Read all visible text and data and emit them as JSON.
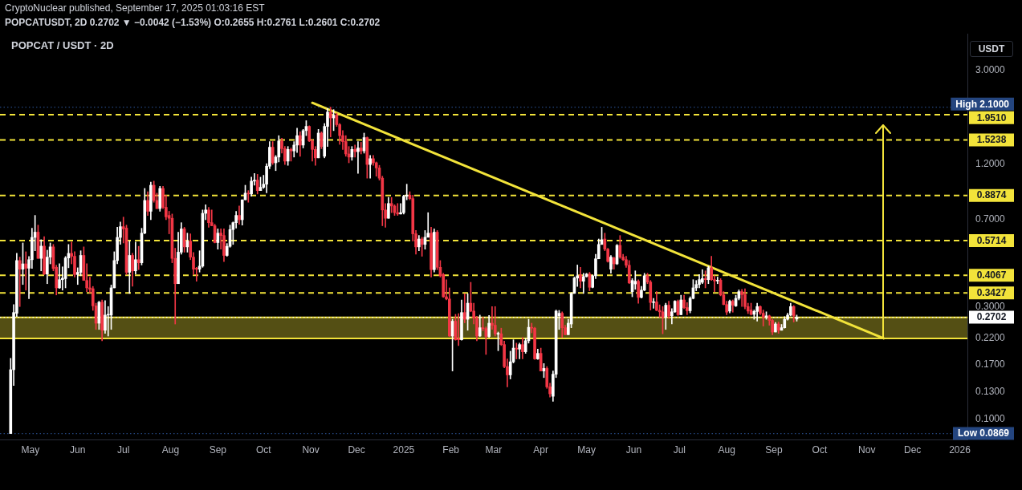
{
  "chart_data": {
    "type": "candlestick",
    "title": "POPCAT / USDT · 2D",
    "subtitle": "POPCATUSDT, 2D 0.2702 ▼ −0.0042 (−1.53%) O:0.2655 H:0.2761 L:0.2601 C:0.2702",
    "annotations": [
      "CryptoNuclear published, September 17, 2025 01:03:16 EST"
    ],
    "ylabel": "USDT",
    "x": [
      "2024-04-18",
      "2024-04-20",
      "2024-04-22",
      "2024-04-24",
      "2024-04-26",
      "2024-04-28",
      "2024-04-30",
      "2024-05-02",
      "2024-05-04",
      "2024-05-06",
      "2024-05-08",
      "2024-05-10",
      "2024-05-12",
      "2024-05-14",
      "2024-05-16",
      "2024-05-18",
      "2024-05-20",
      "2024-05-22",
      "2024-05-24",
      "2024-05-26",
      "2024-05-28",
      "2024-05-30",
      "2024-06-01",
      "2024-06-03",
      "2024-06-05",
      "2024-06-07",
      "2024-06-09",
      "2024-06-11",
      "2024-06-13",
      "2024-06-15",
      "2024-06-17",
      "2024-06-19",
      "2024-06-21",
      "2024-06-23",
      "2024-06-25",
      "2024-06-27",
      "2024-06-29",
      "2024-07-01",
      "2024-07-03",
      "2024-07-05",
      "2024-07-07",
      "2024-07-09",
      "2024-07-11",
      "2024-07-13",
      "2024-07-15",
      "2024-07-17",
      "2024-07-19",
      "2024-07-21",
      "2024-07-23",
      "2024-07-25",
      "2024-07-27",
      "2024-07-29",
      "2024-07-31",
      "2024-08-02",
      "2024-08-04",
      "2024-08-06",
      "2024-08-08",
      "2024-08-10",
      "2024-08-12",
      "2024-08-14",
      "2024-08-16",
      "2024-08-18",
      "2024-08-20",
      "2024-08-22",
      "2024-08-24",
      "2024-08-26",
      "2024-08-28",
      "2024-08-30",
      "2024-09-01",
      "2024-09-03",
      "2024-09-05",
      "2024-09-07",
      "2024-09-09",
      "2024-09-11",
      "2024-09-13",
      "2024-09-15",
      "2024-09-17",
      "2024-09-19",
      "2024-09-21",
      "2024-09-23",
      "2024-09-25",
      "2024-09-27",
      "2024-09-29",
      "2024-10-01",
      "2024-10-03",
      "2024-10-05",
      "2024-10-07",
      "2024-10-09",
      "2024-10-11",
      "2024-10-13",
      "2024-10-15",
      "2024-10-17",
      "2024-10-19",
      "2024-10-21",
      "2024-10-23",
      "2024-10-25",
      "2024-10-27",
      "2024-10-29",
      "2024-10-31",
      "2024-11-02",
      "2024-11-04",
      "2024-11-06",
      "2024-11-08",
      "2024-11-10",
      "2024-11-12",
      "2024-11-14",
      "2024-11-16",
      "2024-11-18",
      "2024-11-20",
      "2024-11-22",
      "2024-11-24",
      "2024-11-26",
      "2024-11-28",
      "2024-11-30",
      "2024-12-02",
      "2024-12-04",
      "2024-12-06",
      "2024-12-08",
      "2024-12-10",
      "2024-12-12",
      "2024-12-14",
      "2024-12-16",
      "2024-12-18",
      "2024-12-20",
      "2024-12-22",
      "2024-12-24",
      "2024-12-26",
      "2024-12-28",
      "2024-12-30",
      "2025-01-01",
      "2025-01-03",
      "2025-01-05",
      "2025-01-07",
      "2025-01-09",
      "2025-01-11",
      "2025-01-13",
      "2025-01-15",
      "2025-01-17",
      "2025-01-19",
      "2025-01-21",
      "2025-01-23",
      "2025-01-25",
      "2025-01-27",
      "2025-01-29",
      "2025-01-31",
      "2025-02-02",
      "2025-02-04",
      "2025-02-06",
      "2025-02-08",
      "2025-02-10",
      "2025-02-12",
      "2025-02-14",
      "2025-02-16",
      "2025-02-18",
      "2025-02-20",
      "2025-02-22",
      "2025-02-24",
      "2025-02-26",
      "2025-02-28",
      "2025-03-02",
      "2025-03-04",
      "2025-03-06",
      "2025-03-08",
      "2025-03-10",
      "2025-03-12",
      "2025-03-14",
      "2025-03-16",
      "2025-03-18",
      "2025-03-20",
      "2025-03-22",
      "2025-03-24",
      "2025-03-26",
      "2025-03-28",
      "2025-03-30",
      "2025-04-01",
      "2025-04-03",
      "2025-04-05",
      "2025-04-07",
      "2025-04-09",
      "2025-04-11",
      "2025-04-13",
      "2025-04-15",
      "2025-04-17",
      "2025-04-19",
      "2025-04-21",
      "2025-04-23",
      "2025-04-25",
      "2025-04-27",
      "2025-04-29",
      "2025-05-01",
      "2025-05-03",
      "2025-05-05",
      "2025-05-07",
      "2025-05-09",
      "2025-05-11",
      "2025-05-13",
      "2025-05-15",
      "2025-05-17",
      "2025-05-19",
      "2025-05-21",
      "2025-05-23",
      "2025-05-25",
      "2025-05-27",
      "2025-05-29",
      "2025-05-31",
      "2025-06-02",
      "2025-06-04",
      "2025-06-06",
      "2025-06-08",
      "2025-06-10",
      "2025-06-12",
      "2025-06-14",
      "2025-06-16",
      "2025-06-18",
      "2025-06-20",
      "2025-06-22",
      "2025-06-24",
      "2025-06-26",
      "2025-06-28",
      "2025-06-30",
      "2025-07-02",
      "2025-07-04",
      "2025-07-06",
      "2025-07-08",
      "2025-07-10",
      "2025-07-12",
      "2025-07-14",
      "2025-07-16",
      "2025-07-18",
      "2025-07-20",
      "2025-07-22",
      "2025-07-24",
      "2025-07-26",
      "2025-07-28",
      "2025-07-30",
      "2025-08-01",
      "2025-08-03",
      "2025-08-05",
      "2025-08-07",
      "2025-08-09",
      "2025-08-11",
      "2025-08-13",
      "2025-08-15",
      "2025-08-17",
      "2025-08-19",
      "2025-08-21",
      "2025-08-23",
      "2025-08-25",
      "2025-08-27",
      "2025-08-29",
      "2025-08-31",
      "2025-09-02",
      "2025-09-04",
      "2025-09-06",
      "2025-09-08",
      "2025-09-10",
      "2025-09-12",
      "2025-09-14",
      "2025-09-16"
    ],
    "ohlc": [
      [
        0.0869,
        0.181,
        0.0869,
        0.162
      ],
      [
        0.162,
        0.306,
        0.139,
        0.283
      ],
      [
        0.281,
        0.504,
        0.272,
        0.47
      ],
      [
        0.47,
        0.486,
        0.3,
        0.432
      ],
      [
        0.432,
        0.558,
        0.372,
        0.455
      ],
      [
        0.455,
        0.512,
        0.352,
        0.436
      ],
      [
        0.436,
        0.489,
        0.324,
        0.474
      ],
      [
        0.474,
        0.644,
        0.435,
        0.589
      ],
      [
        0.589,
        0.73,
        0.517,
        0.62
      ],
      [
        0.62,
        0.664,
        0.48,
        0.48
      ],
      [
        0.48,
        0.576,
        0.425,
        0.541
      ],
      [
        0.541,
        0.594,
        0.41,
        0.412
      ],
      [
        0.412,
        0.52,
        0.375,
        0.486
      ],
      [
        0.486,
        0.558,
        0.455,
        0.537
      ],
      [
        0.537,
        0.55,
        0.425,
        0.435
      ],
      [
        0.44,
        0.449,
        0.336,
        0.36
      ],
      [
        0.36,
        0.456,
        0.358,
        0.39
      ],
      [
        0.39,
        0.442,
        0.352,
        0.396
      ],
      [
        0.394,
        0.489,
        0.36,
        0.482
      ],
      [
        0.482,
        0.55,
        0.438,
        0.504
      ],
      [
        0.504,
        0.563,
        0.455,
        0.49
      ],
      [
        0.49,
        0.512,
        0.4,
        0.41
      ],
      [
        0.41,
        0.438,
        0.372,
        0.419
      ],
      [
        0.419,
        0.517,
        0.405,
        0.494
      ],
      [
        0.494,
        0.537,
        0.387,
        0.387
      ],
      [
        0.387,
        0.456,
        0.347,
        0.36
      ],
      [
        0.36,
        0.4,
        0.343,
        0.355
      ],
      [
        0.357,
        0.365,
        0.289,
        0.302
      ],
      [
        0.302,
        0.31,
        0.24,
        0.255
      ],
      [
        0.255,
        0.316,
        0.24,
        0.313
      ],
      [
        0.313,
        0.32,
        0.215,
        0.238
      ],
      [
        0.238,
        0.318,
        0.231,
        0.276
      ],
      [
        0.276,
        0.3,
        0.225,
        0.277
      ],
      [
        0.276,
        0.37,
        0.24,
        0.36
      ],
      [
        0.36,
        0.512,
        0.36,
        0.47
      ],
      [
        0.47,
        0.65,
        0.455,
        0.589
      ],
      [
        0.589,
        0.685,
        0.55,
        0.654
      ],
      [
        0.654,
        0.718,
        0.558,
        0.64
      ],
      [
        0.645,
        0.664,
        0.41,
        0.419
      ],
      [
        0.419,
        0.568,
        0.341,
        0.494
      ],
      [
        0.494,
        0.504,
        0.366,
        0.425
      ],
      [
        0.425,
        0.563,
        0.412,
        0.474
      ],
      [
        0.474,
        0.54,
        0.43,
        0.46
      ],
      [
        0.46,
        0.644,
        0.45,
        0.614
      ],
      [
        0.614,
        0.95,
        0.61,
        0.845
      ],
      [
        0.845,
        0.92,
        0.73,
        0.76
      ],
      [
        0.76,
        1.01,
        0.7,
        0.98
      ],
      [
        0.98,
        1.02,
        0.83,
        0.845
      ],
      [
        0.845,
        0.907,
        0.78,
        0.78
      ],
      [
        0.78,
        0.97,
        0.76,
        0.95
      ],
      [
        0.95,
        0.97,
        0.78,
        0.79
      ],
      [
        0.79,
        0.89,
        0.7,
        0.72
      ],
      [
        0.73,
        0.76,
        0.61,
        0.71
      ],
      [
        0.71,
        0.74,
        0.46,
        0.48
      ],
      [
        0.48,
        0.53,
        0.253,
        0.375
      ],
      [
        0.375,
        0.62,
        0.375,
        0.51
      ],
      [
        0.51,
        0.68,
        0.5,
        0.64
      ],
      [
        0.64,
        0.65,
        0.51,
        0.537
      ],
      [
        0.537,
        0.614,
        0.51,
        0.568
      ],
      [
        0.568,
        0.61,
        0.474,
        0.486
      ],
      [
        0.486,
        0.508,
        0.41,
        0.432
      ],
      [
        0.435,
        0.44,
        0.384,
        0.432
      ],
      [
        0.432,
        0.517,
        0.42,
        0.445
      ],
      [
        0.445,
        0.77,
        0.44,
        0.745
      ],
      [
        0.745,
        0.81,
        0.7,
        0.77
      ],
      [
        0.77,
        0.79,
        0.65,
        0.68
      ],
      [
        0.68,
        0.77,
        0.66,
        0.66
      ],
      [
        0.66,
        0.67,
        0.558,
        0.56
      ],
      [
        0.56,
        0.64,
        0.525,
        0.614
      ],
      [
        0.614,
        0.64,
        0.525,
        0.6
      ],
      [
        0.6,
        0.64,
        0.465,
        0.494
      ],
      [
        0.494,
        0.555,
        0.49,
        0.54
      ],
      [
        0.54,
        0.664,
        0.535,
        0.636
      ],
      [
        0.636,
        0.685,
        0.55,
        0.68
      ],
      [
        0.68,
        0.76,
        0.645,
        0.73
      ],
      [
        0.73,
        0.8,
        0.67,
        0.7
      ],
      [
        0.7,
        0.85,
        0.664,
        0.85
      ],
      [
        0.85,
        0.98,
        0.85,
        0.907
      ],
      [
        0.907,
        0.93,
        0.83,
        0.9
      ],
      [
        0.9,
        1.06,
        0.88,
        1.02
      ],
      [
        1.02,
        1.1,
        0.98,
        1.03
      ],
      [
        1.03,
        1.09,
        0.9,
        0.93
      ],
      [
        0.93,
        1.06,
        0.93,
        0.96
      ],
      [
        0.96,
        1.08,
        0.95,
        0.99
      ],
      [
        0.99,
        1.21,
        0.91,
        1.18
      ],
      [
        1.18,
        1.5,
        1.15,
        1.42
      ],
      [
        1.42,
        1.5,
        1.2,
        1.22
      ],
      [
        1.22,
        1.31,
        1.13,
        1.29
      ],
      [
        1.29,
        1.59,
        1.23,
        1.51
      ],
      [
        1.51,
        1.55,
        1.34,
        1.4
      ],
      [
        1.4,
        1.43,
        1.2,
        1.24
      ],
      [
        1.24,
        1.43,
        1.19,
        1.39
      ],
      [
        1.39,
        1.41,
        1.24,
        1.37
      ],
      [
        1.37,
        1.5,
        1.29,
        1.45
      ],
      [
        1.45,
        1.71,
        1.35,
        1.59
      ],
      [
        1.59,
        1.65,
        1.3,
        1.45
      ],
      [
        1.45,
        1.69,
        1.41,
        1.67
      ],
      [
        1.67,
        1.84,
        1.59,
        1.74
      ],
      [
        1.74,
        1.75,
        1.5,
        1.51
      ],
      [
        1.51,
        1.53,
        1.24,
        1.39
      ],
      [
        1.39,
        1.43,
        1.19,
        1.28
      ],
      [
        1.28,
        1.69,
        1.28,
        1.63
      ],
      [
        1.63,
        1.65,
        1.4,
        1.43
      ],
      [
        1.3,
        1.79,
        1.28,
        1.74
      ],
      [
        1.74,
        2.07,
        1.43,
        2.0
      ],
      [
        2.0,
        2.1,
        1.57,
        1.89
      ],
      [
        1.89,
        2.05,
        1.67,
        1.94
      ],
      [
        1.94,
        1.98,
        1.74,
        1.77
      ],
      [
        1.77,
        1.79,
        1.46,
        1.59
      ],
      [
        1.59,
        1.67,
        1.39,
        1.5
      ],
      [
        1.5,
        1.59,
        1.3,
        1.33
      ],
      [
        1.33,
        1.43,
        1.22,
        1.29
      ],
      [
        1.29,
        1.43,
        1.25,
        1.39
      ],
      [
        1.39,
        1.45,
        1.29,
        1.36
      ],
      [
        1.36,
        1.5,
        1.1,
        1.41
      ],
      [
        1.41,
        1.49,
        1.33,
        1.37
      ],
      [
        1.37,
        1.63,
        1.34,
        1.56
      ],
      [
        1.56,
        1.57,
        1.05,
        1.2
      ],
      [
        1.2,
        1.31,
        1.05,
        1.27
      ],
      [
        1.27,
        1.31,
        1.19,
        1.22
      ],
      [
        1.22,
        1.23,
        1.07,
        1.16
      ],
      [
        1.16,
        1.19,
        1.03,
        1.05
      ],
      [
        1.05,
        1.07,
        0.66,
        0.77
      ],
      [
        0.77,
        0.82,
        0.65,
        0.71
      ],
      [
        0.71,
        0.87,
        0.71,
        0.82
      ],
      [
        0.82,
        0.87,
        0.75,
        0.8
      ],
      [
        0.8,
        0.81,
        0.73,
        0.75
      ],
      [
        0.75,
        0.82,
        0.73,
        0.74
      ],
      [
        0.74,
        0.82,
        0.74,
        0.75
      ],
      [
        0.75,
        0.89,
        0.74,
        0.88
      ],
      [
        0.88,
        0.99,
        0.85,
        0.89
      ],
      [
        0.89,
        0.92,
        0.85,
        0.86
      ],
      [
        0.86,
        0.89,
        0.568,
        0.61
      ],
      [
        0.61,
        0.63,
        0.5,
        0.537
      ],
      [
        0.537,
        0.6,
        0.517,
        0.58
      ],
      [
        0.58,
        0.59,
        0.49,
        0.55
      ],
      [
        0.55,
        0.63,
        0.525,
        0.59
      ],
      [
        0.59,
        0.75,
        0.59,
        0.614
      ],
      [
        0.614,
        0.65,
        0.4,
        0.43
      ],
      [
        0.43,
        0.64,
        0.42,
        0.62
      ],
      [
        0.62,
        0.63,
        0.43,
        0.44
      ],
      [
        0.44,
        0.47,
        0.4,
        0.405
      ],
      [
        0.41,
        0.415,
        0.328,
        0.33
      ],
      [
        0.33,
        0.39,
        0.32,
        0.323
      ],
      [
        0.323,
        0.36,
        0.224,
        0.225
      ],
      [
        0.225,
        0.265,
        0.16,
        0.26
      ],
      [
        0.26,
        0.278,
        0.216,
        0.217
      ],
      [
        0.219,
        0.28,
        0.205,
        0.217
      ],
      [
        0.217,
        0.32,
        0.216,
        0.283
      ],
      [
        0.283,
        0.34,
        0.256,
        0.265
      ],
      [
        0.265,
        0.34,
        0.238,
        0.31
      ],
      [
        0.31,
        0.38,
        0.285,
        0.287
      ],
      [
        0.287,
        0.31,
        0.253,
        0.268
      ],
      [
        0.268,
        0.273,
        0.215,
        0.225
      ],
      [
        0.225,
        0.276,
        0.224,
        0.244
      ],
      [
        0.244,
        0.27,
        0.237,
        0.242
      ],
      [
        0.242,
        0.246,
        0.188,
        0.224
      ],
      [
        0.224,
        0.275,
        0.222,
        0.255
      ],
      [
        0.255,
        0.3,
        0.24,
        0.25
      ],
      [
        0.25,
        0.3,
        0.225,
        0.23
      ],
      [
        0.229,
        0.234,
        0.195,
        0.231
      ],
      [
        0.23,
        0.243,
        0.205,
        0.207
      ],
      [
        0.207,
        0.214,
        0.165,
        0.167
      ],
      [
        0.167,
        0.18,
        0.137,
        0.154
      ],
      [
        0.154,
        0.194,
        0.148,
        0.175
      ],
      [
        0.175,
        0.217,
        0.173,
        0.2
      ],
      [
        0.2,
        0.21,
        0.18,
        0.198
      ],
      [
        0.198,
        0.21,
        0.18,
        0.207
      ],
      [
        0.207,
        0.222,
        0.18,
        0.193
      ],
      [
        0.193,
        0.22,
        0.19,
        0.215
      ],
      [
        0.215,
        0.265,
        0.21,
        0.245
      ],
      [
        0.245,
        0.255,
        0.232,
        0.243
      ],
      [
        0.243,
        0.245,
        0.179,
        0.18
      ],
      [
        0.18,
        0.198,
        0.179,
        0.19
      ],
      [
        0.19,
        0.2,
        0.16,
        0.16
      ],
      [
        0.16,
        0.172,
        0.15,
        0.164
      ],
      [
        0.164,
        0.167,
        0.135,
        0.137
      ],
      [
        0.137,
        0.142,
        0.124,
        0.128
      ],
      [
        0.125,
        0.16,
        0.119,
        0.155
      ],
      [
        0.155,
        0.29,
        0.15,
        0.287
      ],
      [
        0.274,
        0.289,
        0.24,
        0.281
      ],
      [
        0.281,
        0.285,
        0.222,
        0.244
      ],
      [
        0.244,
        0.25,
        0.228,
        0.228
      ],
      [
        0.228,
        0.265,
        0.228,
        0.255
      ],
      [
        0.253,
        0.344,
        0.244,
        0.341
      ],
      [
        0.341,
        0.4,
        0.341,
        0.396
      ],
      [
        0.396,
        0.45,
        0.365,
        0.405
      ],
      [
        0.409,
        0.44,
        0.36,
        0.384
      ],
      [
        0.384,
        0.415,
        0.341,
        0.402
      ],
      [
        0.402,
        0.415,
        0.4,
        0.412
      ],
      [
        0.412,
        0.419,
        0.35,
        0.362
      ],
      [
        0.362,
        0.408,
        0.36,
        0.405
      ],
      [
        0.405,
        0.5,
        0.394,
        0.478
      ],
      [
        0.478,
        0.58,
        0.478,
        0.55
      ],
      [
        0.55,
        0.65,
        0.55,
        0.576
      ],
      [
        0.58,
        0.614,
        0.517,
        0.525
      ],
      [
        0.525,
        0.53,
        0.463,
        0.466
      ],
      [
        0.432,
        0.494,
        0.415,
        0.486
      ],
      [
        0.482,
        0.486,
        0.432,
        0.455
      ],
      [
        0.455,
        0.55,
        0.452,
        0.545
      ],
      [
        0.545,
        0.6,
        0.48,
        0.486
      ],
      [
        0.486,
        0.5,
        0.47,
        0.474
      ],
      [
        0.474,
        0.49,
        0.44,
        0.449
      ],
      [
        0.449,
        0.47,
        0.375,
        0.378
      ],
      [
        0.347,
        0.394,
        0.33,
        0.387
      ],
      [
        0.374,
        0.425,
        0.355,
        0.384
      ],
      [
        0.384,
        0.39,
        0.31,
        0.328
      ],
      [
        0.328,
        0.365,
        0.326,
        0.352
      ],
      [
        0.352,
        0.415,
        0.35,
        0.405
      ],
      [
        0.405,
        0.415,
        0.375,
        0.381
      ],
      [
        0.381,
        0.387,
        0.29,
        0.312
      ],
      [
        0.312,
        0.325,
        0.295,
        0.314
      ],
      [
        0.314,
        0.347,
        0.288,
        0.289
      ],
      [
        0.289,
        0.305,
        0.27,
        0.285
      ],
      [
        0.285,
        0.3,
        0.23,
        0.27
      ],
      [
        0.27,
        0.31,
        0.24,
        0.304
      ],
      [
        0.304,
        0.316,
        0.267,
        0.274
      ],
      [
        0.274,
        0.294,
        0.253,
        0.285
      ],
      [
        0.285,
        0.318,
        0.283,
        0.316
      ],
      [
        0.316,
        0.32,
        0.275,
        0.277
      ],
      [
        0.277,
        0.335,
        0.277,
        0.32
      ],
      [
        0.32,
        0.335,
        0.294,
        0.297
      ],
      [
        0.297,
        0.312,
        0.277,
        0.288
      ],
      [
        0.288,
        0.33,
        0.282,
        0.325
      ],
      [
        0.325,
        0.39,
        0.323,
        0.36
      ],
      [
        0.36,
        0.387,
        0.35,
        0.372
      ],
      [
        0.372,
        0.41,
        0.36,
        0.39
      ],
      [
        0.38,
        0.43,
        0.375,
        0.394
      ],
      [
        0.394,
        0.425,
        0.36,
        0.39
      ],
      [
        0.39,
        0.445,
        0.375,
        0.438
      ],
      [
        0.438,
        0.49,
        0.387,
        0.39
      ],
      [
        0.39,
        0.405,
        0.347,
        0.385
      ],
      [
        0.385,
        0.4,
        0.375,
        0.388
      ],
      [
        0.388,
        0.394,
        0.333,
        0.336
      ],
      [
        0.336,
        0.347,
        0.305,
        0.306
      ],
      [
        0.306,
        0.316,
        0.277,
        0.284
      ],
      [
        0.287,
        0.32,
        0.282,
        0.316
      ],
      [
        0.316,
        0.32,
        0.284,
        0.304
      ],
      [
        0.302,
        0.335,
        0.3,
        0.325
      ],
      [
        0.325,
        0.353,
        0.32,
        0.347
      ],
      [
        0.347,
        0.355,
        0.3,
        0.337
      ],
      [
        0.337,
        0.357,
        0.293,
        0.3
      ],
      [
        0.3,
        0.31,
        0.28,
        0.287
      ],
      [
        0.29,
        0.31,
        0.276,
        0.278
      ],
      [
        0.278,
        0.29,
        0.265,
        0.286
      ],
      [
        0.286,
        0.31,
        0.26,
        0.3
      ],
      [
        0.3,
        0.302,
        0.277,
        0.281
      ],
      [
        0.281,
        0.29,
        0.248,
        0.27
      ],
      [
        0.27,
        0.285,
        0.265,
        0.274
      ],
      [
        0.274,
        0.276,
        0.25,
        0.262
      ],
      [
        0.262,
        0.265,
        0.228,
        0.234
      ],
      [
        0.234,
        0.257,
        0.234,
        0.253
      ],
      [
        0.253,
        0.258,
        0.231,
        0.238
      ],
      [
        0.238,
        0.252,
        0.238,
        0.244
      ],
      [
        0.244,
        0.272,
        0.243,
        0.265
      ],
      [
        0.265,
        0.281,
        0.263,
        0.276
      ],
      [
        0.276,
        0.31,
        0.274,
        0.3
      ],
      [
        0.3,
        0.303,
        0.258,
        0.2744
      ],
      [
        0.2655,
        0.2761,
        0.2601,
        0.2702
      ]
    ],
    "colors": [
      "#ffffff",
      "#ffffff",
      "#ffffff",
      "#f23645",
      "#ffffff",
      "#f23645",
      "#ffffff",
      "#ffffff",
      "#ffffff",
      "#f23645",
      "#ffffff",
      "#f23645",
      "#ffffff",
      "#ffffff",
      "#f23645",
      "#f23645",
      "#ffffff",
      "#ffffff",
      "#ffffff",
      "#ffffff",
      "#f23645",
      "#f23645",
      "#ffffff",
      "#ffffff",
      "#f23645",
      "#f23645",
      "#f23645",
      "#f23645",
      "#f23645",
      "#ffffff",
      "#f23645",
      "#ffffff",
      "#ffffff",
      "#ffffff",
      "#ffffff",
      "#ffffff",
      "#ffffff",
      "#f23645",
      "#f23645",
      "#ffffff",
      "#f23645",
      "#ffffff",
      "#f23645",
      "#ffffff",
      "#ffffff",
      "#f23645",
      "#ffffff",
      "#f23645",
      "#f23645",
      "#ffffff",
      "#f23645",
      "#f23645",
      "#f23645",
      "#f23645",
      "#f23645",
      "#ffffff",
      "#ffffff",
      "#f23645",
      "#ffffff",
      "#f23645",
      "#f23645",
      "#f23645",
      "#ffffff",
      "#ffffff",
      "#ffffff",
      "#f23645",
      "#f23645",
      "#f23645",
      "#ffffff",
      "#f23645",
      "#f23645",
      "#ffffff",
      "#ffffff",
      "#ffffff",
      "#ffffff",
      "#f23645",
      "#ffffff",
      "#ffffff",
      "#f23645",
      "#ffffff",
      "#ffffff",
      "#f23645",
      "#ffffff",
      "#ffffff",
      "#ffffff",
      "#ffffff",
      "#f23645",
      "#ffffff",
      "#ffffff",
      "#f23645",
      "#f23645",
      "#ffffff",
      "#f23645",
      "#ffffff",
      "#ffffff",
      "#f23645",
      "#ffffff",
      "#ffffff",
      "#f23645",
      "#f23645",
      "#f23645",
      "#ffffff",
      "#f23645",
      "#ffffff",
      "#ffffff",
      "#f23645",
      "#ffffff",
      "#f23645",
      "#f23645",
      "#f23645",
      "#f23645",
      "#f23645",
      "#ffffff",
      "#f23645",
      "#ffffff",
      "#f23645",
      "#ffffff",
      "#f23645",
      "#ffffff",
      "#f23645",
      "#f23645",
      "#f23645",
      "#f23645",
      "#f23645",
      "#ffffff",
      "#f23645",
      "#f23645",
      "#f23645",
      "#ffffff",
      "#ffffff",
      "#ffffff",
      "#f23645",
      "#f23645",
      "#f23645",
      "#ffffff",
      "#f23645",
      "#ffffff",
      "#ffffff",
      "#f23645",
      "#ffffff",
      "#f23645",
      "#f23645",
      "#f23645",
      "#f23645",
      "#f23645",
      "#ffffff",
      "#f23645",
      "#f23645",
      "#ffffff",
      "#f23645",
      "#ffffff",
      "#f23645",
      "#f23645",
      "#f23645",
      "#ffffff",
      "#f23645",
      "#f23645",
      "#ffffff",
      "#f23645",
      "#f23645",
      "#ffffff",
      "#f23645",
      "#f23645",
      "#f23645",
      "#ffffff",
      "#ffffff",
      "#f23645",
      "#ffffff",
      "#f23645",
      "#ffffff",
      "#ffffff",
      "#f23645",
      "#f23645",
      "#ffffff",
      "#f23645",
      "#ffffff",
      "#f23645",
      "#f23645",
      "#ffffff",
      "#ffffff",
      "#ffffff",
      "#f23645",
      "#f23645",
      "#ffffff",
      "#ffffff",
      "#ffffff",
      "#ffffff",
      "#f23645",
      "#ffffff",
      "#ffffff",
      "#f23645",
      "#ffffff",
      "#ffffff",
      "#ffffff",
      "#ffffff",
      "#f23645",
      "#f23645",
      "#ffffff",
      "#f23645",
      "#ffffff",
      "#f23645",
      "#f23645",
      "#f23645",
      "#f23645",
      "#ffffff",
      "#ffffff",
      "#f23645",
      "#ffffff",
      "#ffffff",
      "#f23645",
      "#f23645",
      "#ffffff",
      "#f23645",
      "#f23645",
      "#f23645",
      "#ffffff",
      "#f23645",
      "#ffffff",
      "#ffffff",
      "#f23645",
      "#ffffff",
      "#f23645",
      "#f23645",
      "#ffffff",
      "#ffffff",
      "#ffffff",
      "#ffffff",
      "#ffffff",
      "#f23645",
      "#ffffff",
      "#f23645",
      "#f23645",
      "#ffffff",
      "#f23645",
      "#f23645",
      "#f23645",
      "#ffffff",
      "#f23645",
      "#ffffff",
      "#ffffff",
      "#f23645",
      "#f23645",
      "#f23645",
      "#f23645",
      "#ffffff",
      "#ffffff",
      "#f23645",
      "#f23645",
      "#ffffff",
      "#f23645",
      "#f23645",
      "#ffffff",
      "#f23645",
      "#ffffff",
      "#ffffff",
      "#ffffff",
      "#ffffff",
      "#f23645",
      "#ffffff"
    ],
    "series": [
      {
        "type": "line",
        "x": [
          "2024-11-02",
          "2025-11-12"
        ],
        "values": [
          2.19,
          0.22
        ],
        "color": "#f2e33a"
      }
    ],
    "xlim": [
      "2024-04-11",
      "2026-01-06"
    ],
    "xticks": [
      {
        "value": "2024-05-01",
        "label": "May"
      },
      {
        "value": "2024-06-01",
        "label": "Jun"
      },
      {
        "value": "2024-07-01",
        "label": "Jul"
      },
      {
        "value": "2024-08-01",
        "label": "Aug"
      },
      {
        "value": "2024-09-01",
        "label": "Sep"
      },
      {
        "value": "2024-10-01",
        "label": "Oct"
      },
      {
        "value": "2024-11-01",
        "label": "Nov"
      },
      {
        "value": "2024-12-01",
        "label": "Dec"
      },
      {
        "value": "2025-01-01",
        "label": "2025"
      },
      {
        "value": "2025-02-01",
        "label": "Feb"
      },
      {
        "value": "2025-03-01",
        "label": "Mar"
      },
      {
        "value": "2025-04-01",
        "label": "Apr"
      },
      {
        "value": "2025-05-01",
        "label": "May"
      },
      {
        "value": "2025-06-01",
        "label": "Jun"
      },
      {
        "value": "2025-07-01",
        "label": "Jul"
      },
      {
        "value": "2025-08-01",
        "label": "Aug"
      },
      {
        "value": "2025-09-01",
        "label": "Sep"
      },
      {
        "value": "2025-10-01",
        "label": "Oct"
      },
      {
        "value": "2025-11-01",
        "label": "Nov"
      },
      {
        "value": "2025-12-01",
        "label": "Dec"
      },
      {
        "value": "2026-01-01",
        "label": "2026"
      }
    ],
    "ylim": [
      0.082,
      4.3
    ],
    "yticks": [
      {
        "value": 3,
        "label": "3.0000"
      },
      {
        "value": 1.2,
        "label": "1.2000"
      },
      {
        "value": 0.7,
        "label": "0.7000"
      },
      {
        "value": 0.3,
        "label": "0.3000"
      },
      {
        "value": 0.22,
        "label": "0.2200"
      },
      {
        "value": 0.17,
        "label": "0.1700"
      },
      {
        "value": 0.13,
        "label": "0.1300"
      },
      {
        "value": 0.1,
        "label": "0.1000"
      }
    ],
    "log": true,
    "grid": false,
    "legend": false,
    "ref_lines": [
      {
        "axis": "y",
        "value": 2.1,
        "label": "High 2.1000",
        "color": "#24457f",
        "line_style": "dotted"
      },
      {
        "axis": "y",
        "value": 1.951,
        "label": "1.9510",
        "color": "#f2e33a",
        "line_style": "dashed"
      },
      {
        "axis": "y",
        "value": 1.5238,
        "label": "1.5238",
        "color": "#f2e33a",
        "line_style": "dashed"
      },
      {
        "axis": "y",
        "value": 0.8874,
        "label": "0.8874",
        "color": "#f2e33a",
        "line_style": "dashed"
      },
      {
        "axis": "y",
        "value": 0.5714,
        "label": "0.5714",
        "color": "#f2e33a",
        "line_style": "dashed"
      },
      {
        "axis": "y",
        "value": 0.4067,
        "label": "0.4067",
        "color": "#f2e33a",
        "line_style": "dashed"
      },
      {
        "axis": "y",
        "value": 0.3427,
        "label": "0.3427",
        "color": "#f2e33a",
        "line_style": "dashed"
      },
      {
        "axis": "y",
        "value": 0.2702,
        "label": "0.2702",
        "color": "#ffffff",
        "line_style": "dotted"
      },
      {
        "axis": "y",
        "value": 0.0869,
        "label": "Low 0.0869",
        "color": "#24457f",
        "line_style": "dotted"
      }
    ],
    "bands": [
      {
        "axis": "y",
        "from": 0.22,
        "to": 0.27,
        "color": "#f2e33a"
      }
    ]
  }
}
